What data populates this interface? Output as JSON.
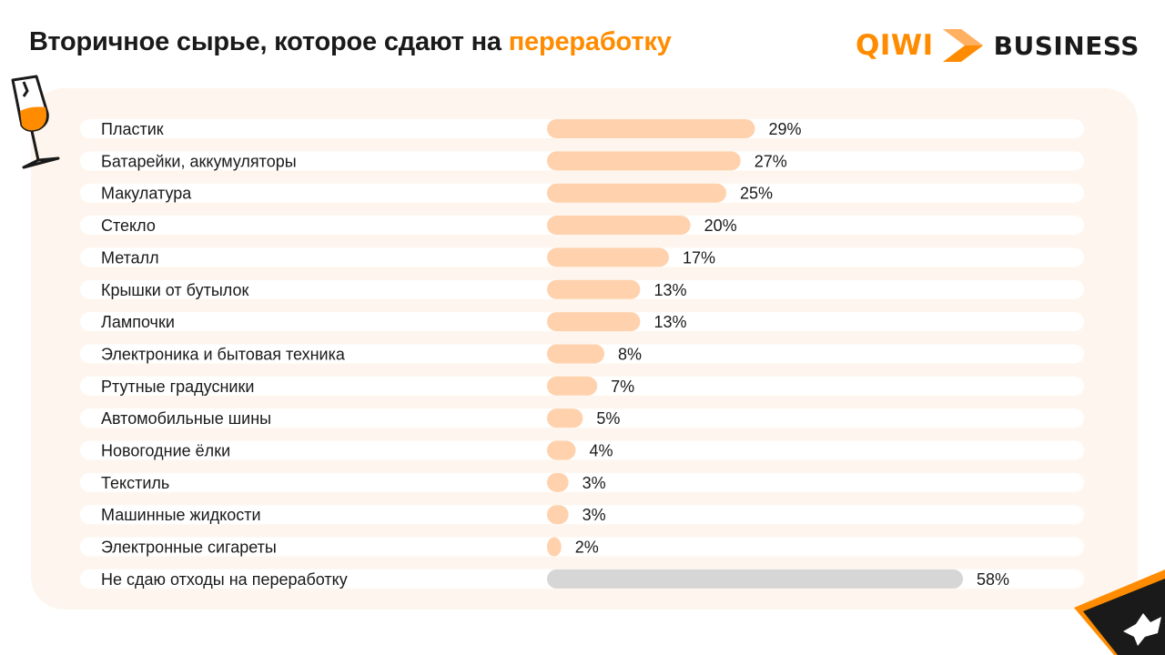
{
  "header": {
    "title_main": "Вторичное сырье, которое сдают на ",
    "title_accent": "переработку"
  },
  "brand": {
    "qiwi": "QIWI",
    "business": "BUSINESS"
  },
  "colors": {
    "accent": "#ff8c00",
    "bar": "#ffd2ad",
    "bar_none": "#d6d6d6",
    "track": "#ffffff",
    "panel": "#fef6ee"
  },
  "icons": [
    "wine-glass-icon",
    "qiwi-chevron-icon",
    "bird-decoration-icon"
  ],
  "chart_data": {
    "type": "bar",
    "orientation": "horizontal",
    "title": "Вторичное сырье, которое сдают на переработку",
    "categories": [
      "Пластик",
      "Батарейки, аккумуляторы",
      "Макулатура",
      "Стекло",
      "Металл",
      "Крышки от бутылок",
      "Лампочки",
      "Электроника и бытовая техника",
      "Ртутные градусники",
      "Автомобильные шины",
      "Новогодние ёлки",
      "Текстиль",
      "Машинные жидкости",
      "Электронные сигареты",
      "Не сдаю отходы на переработку"
    ],
    "values": [
      29,
      27,
      25,
      20,
      17,
      13,
      13,
      8,
      7,
      5,
      4,
      3,
      3,
      2,
      58
    ],
    "value_labels": [
      "29%",
      "27%",
      "25%",
      "20%",
      "17%",
      "13%",
      "13%",
      "8%",
      "7%",
      "5%",
      "4%",
      "3%",
      "3%",
      "2%",
      "58%"
    ],
    "unit": "%",
    "grid": false,
    "legend": "none"
  }
}
